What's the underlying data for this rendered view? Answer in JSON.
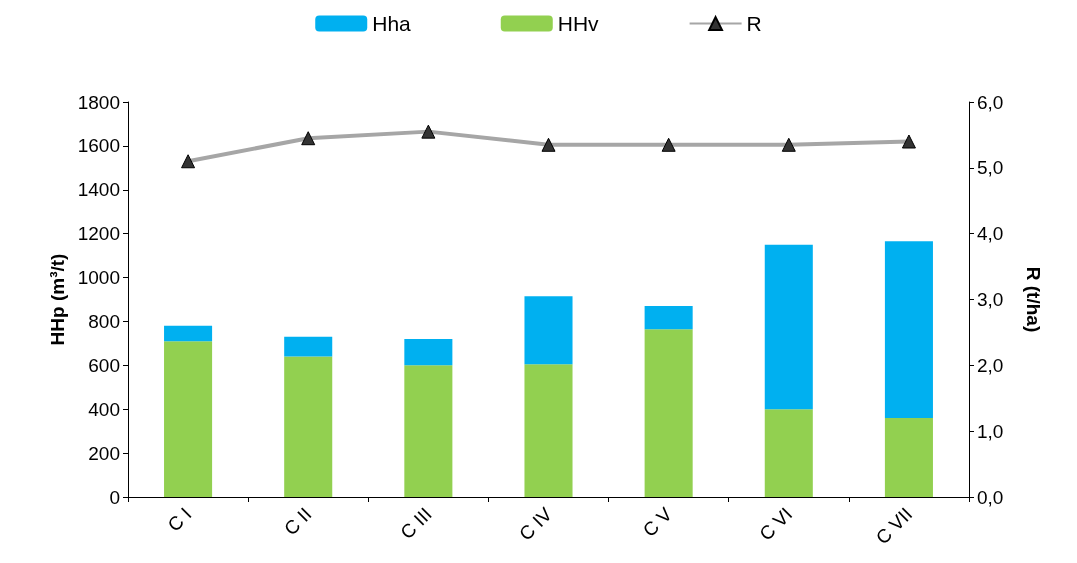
{
  "chart_data": {
    "type": "bar",
    "stacked": true,
    "categories": [
      "C I",
      "C II",
      "C III",
      "C IV",
      "C V",
      "C VI",
      "C VII"
    ],
    "series": [
      {
        "name": "HHv",
        "color": "#92d050",
        "values": [
          710,
          640,
          600,
          605,
          765,
          400,
          360
        ]
      },
      {
        "name": "Hha",
        "color": "#00b0f0",
        "values": [
          70,
          90,
          120,
          310,
          105,
          750,
          805
        ]
      },
      {
        "name": "R",
        "type": "line",
        "axis": "y2",
        "color": "#a6a6a6",
        "marker": "triangle",
        "values": [
          5.1,
          5.45,
          5.55,
          5.35,
          5.35,
          5.35,
          5.4
        ]
      }
    ],
    "ylabel": "HHp (m³/t)",
    "y2label": "R (t/ha)",
    "ylim": [
      0,
      1800
    ],
    "yticks": [
      0,
      200,
      400,
      600,
      800,
      1000,
      1200,
      1400,
      1600,
      1800
    ],
    "y2lim": [
      0,
      6
    ],
    "y2ticks": [
      {
        "value": 0,
        "label": "0,0"
      },
      {
        "value": 1,
        "label": "1,0"
      },
      {
        "value": 2,
        "label": "2,0"
      },
      {
        "value": 3,
        "label": "3,0"
      },
      {
        "value": 4,
        "label": "4,0"
      },
      {
        "value": 5,
        "label": "5,0"
      },
      {
        "value": 6,
        "label": "6,0"
      }
    ],
    "grid": false,
    "legend": "top"
  }
}
